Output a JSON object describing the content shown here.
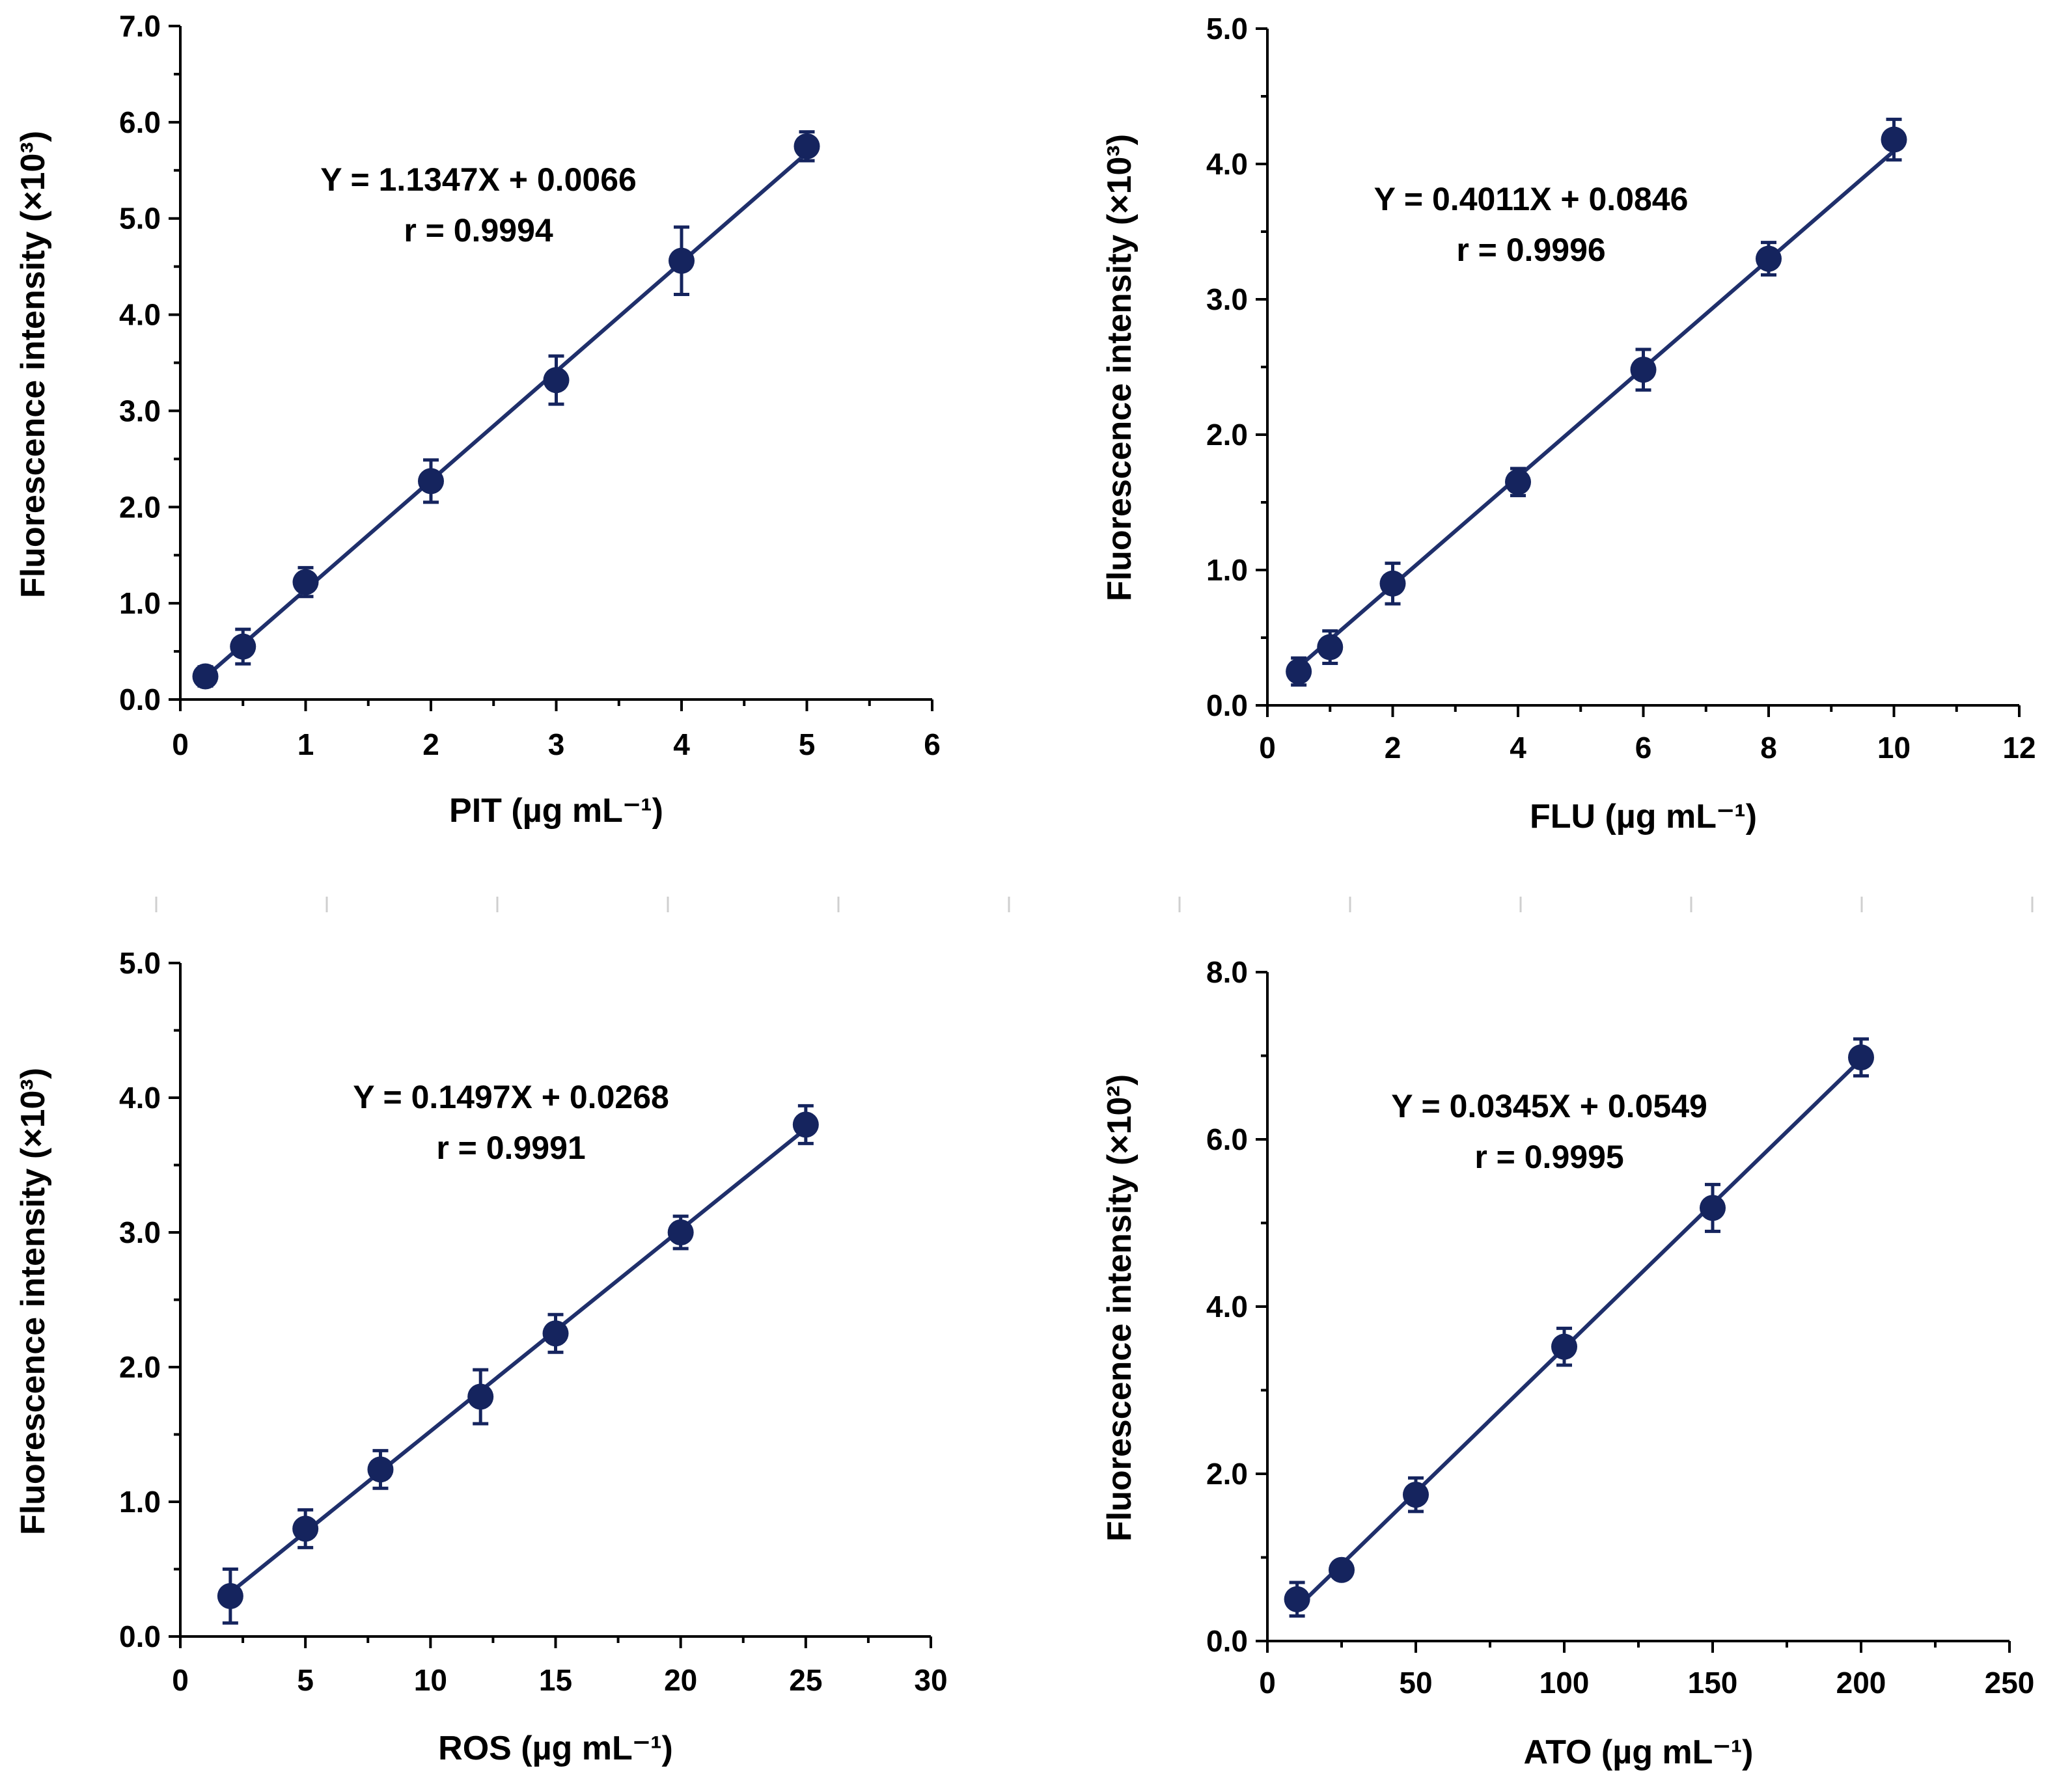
{
  "colors": {
    "marker": "#15245e",
    "fit_line": "#1f2f6b",
    "axis": "#000000"
  },
  "chart_data": [
    {
      "type": "scatter",
      "xlabel": "PIT (µg mL⁻¹)",
      "ylabel": "Fluorescence intensity (×10³)",
      "xlim": [
        0,
        6
      ],
      "ylim": [
        0,
        7
      ],
      "xticks": [
        "0",
        "1",
        "2",
        "3",
        "4",
        "5",
        "6"
      ],
      "yticks": [
        "0.0",
        "1.0",
        "2.0",
        "3.0",
        "4.0",
        "5.0",
        "6.0",
        "7.0"
      ],
      "x": [
        0.2,
        0.5,
        1,
        2,
        3,
        4,
        5
      ],
      "y": [
        0.24,
        0.55,
        1.22,
        2.27,
        3.32,
        4.56,
        5.75
      ],
      "error": [
        0.1,
        0.18,
        0.15,
        0.22,
        0.25,
        0.35,
        0.15
      ],
      "fit": {
        "slope": 1.1347,
        "intercept": 0.0066
      },
      "equation": "Y = 1.1347X + 0.0066",
      "r_text": "r = 0.9994",
      "grid": false
    },
    {
      "type": "scatter",
      "xlabel": "FLU (µg mL⁻¹)",
      "ylabel": "Fluorescence intensity (×10³)",
      "xlim": [
        0,
        12
      ],
      "ylim": [
        0,
        5
      ],
      "xticks": [
        "0",
        "2",
        "4",
        "6",
        "8",
        "10",
        "12"
      ],
      "yticks": [
        "0.0",
        "1.0",
        "2.0",
        "3.0",
        "4.0",
        "5.0"
      ],
      "x": [
        0.5,
        1,
        2,
        4,
        6,
        8,
        10
      ],
      "y": [
        0.25,
        0.43,
        0.9,
        1.65,
        2.48,
        3.3,
        4.18
      ],
      "error": [
        0.1,
        0.12,
        0.15,
        0.1,
        0.15,
        0.12,
        0.15
      ],
      "fit": {
        "slope": 0.4011,
        "intercept": 0.0846
      },
      "equation": "Y = 0.4011X + 0.0846",
      "r_text": "r = 0.9996",
      "grid": false
    },
    {
      "type": "scatter",
      "xlabel": "ROS (µg mL⁻¹)",
      "ylabel": "Fluorescence intensity (×10³)",
      "xlim": [
        0,
        30
      ],
      "ylim": [
        0,
        5
      ],
      "xticks": [
        "0",
        "5",
        "10",
        "15",
        "20",
        "25",
        "30"
      ],
      "yticks": [
        "0.0",
        "1.0",
        "2.0",
        "3.0",
        "4.0",
        "5.0"
      ],
      "x": [
        2,
        5,
        8,
        12,
        15,
        20,
        25
      ],
      "y": [
        0.3,
        0.8,
        1.24,
        1.78,
        2.25,
        3.0,
        3.8
      ],
      "error": [
        0.2,
        0.14,
        0.14,
        0.2,
        0.14,
        0.12,
        0.14
      ],
      "fit": {
        "slope": 0.1497,
        "intercept": 0.0268
      },
      "equation": "Y = 0.1497X + 0.0268",
      "r_text": "r = 0.9991",
      "grid": false
    },
    {
      "type": "scatter",
      "xlabel": "ATO (µg mL⁻¹)",
      "ylabel": "Fluorescence intensity (×10²)",
      "xlim": [
        0,
        250
      ],
      "ylim": [
        0,
        8
      ],
      "xticks": [
        "0",
        "50",
        "100",
        "150",
        "200",
        "250"
      ],
      "yticks": [
        "0.0",
        "2.0",
        "4.0",
        "6.0",
        "8.0"
      ],
      "x": [
        10,
        25,
        50,
        100,
        150,
        200
      ],
      "y": [
        0.5,
        0.85,
        1.75,
        3.52,
        5.18,
        6.98
      ],
      "error": [
        0.2,
        0.1,
        0.2,
        0.22,
        0.28,
        0.22
      ],
      "fit": {
        "slope": 0.0345,
        "intercept": 0.0549
      },
      "equation": "Y = 0.0345X + 0.0549",
      "r_text": "r = 0.9995",
      "grid": false
    }
  ]
}
